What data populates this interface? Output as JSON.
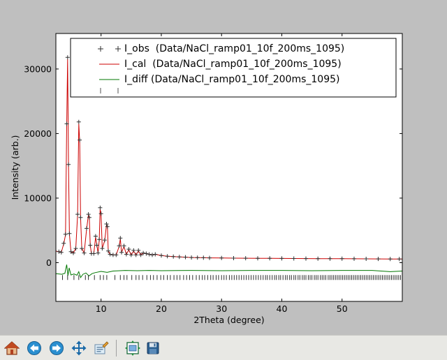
{
  "chart_data": {
    "type": "scatter",
    "xlabel": "2Theta (degree)",
    "ylabel": "Intensity (arb.)",
    "xlim": [
      2.5,
      60
    ],
    "ylim": [
      -6000,
      35500
    ],
    "xticks": [
      10,
      20,
      30,
      40,
      50
    ],
    "yticks": [
      0,
      10000,
      20000,
      30000
    ],
    "legend_position": "top",
    "series": [
      {
        "name": "I_obs  (Data/NaCl_ramp01_10f_200ms_1095)",
        "style": "plus-markers",
        "color": "#303030",
        "x": [
          3.0,
          3.4,
          3.8,
          4.1,
          4.3,
          4.45,
          4.6,
          4.75,
          5.0,
          5.4,
          5.8,
          6.1,
          6.3,
          6.45,
          6.6,
          6.8,
          7.2,
          7.6,
          7.9,
          8.05,
          8.2,
          8.4,
          8.8,
          9.1,
          9.3,
          9.5,
          9.7,
          9.85,
          10.0,
          10.2,
          10.6,
          10.9,
          11.05,
          11.2,
          11.5,
          12.0,
          12.5,
          13.0,
          13.2,
          13.4,
          13.8,
          14.2,
          14.6,
          15.0,
          15.4,
          15.8,
          16.2,
          16.6,
          17.0,
          17.5,
          18.0,
          18.5,
          19.0,
          20.0,
          21.0,
          22.0,
          23.0,
          24.0,
          25.0,
          26.0,
          27.0,
          28.0,
          30.0,
          32.0,
          34.0,
          36.0,
          38.0,
          40.0,
          42.0,
          44.0,
          46.0,
          48.0,
          50.0,
          52.0,
          54.0,
          56.0,
          58.0,
          59.5
        ],
        "y": [
          1700,
          1600,
          3000,
          4400,
          21500,
          31800,
          15200,
          4500,
          1700,
          1500,
          2200,
          7500,
          21800,
          19000,
          7000,
          2200,
          1500,
          5300,
          7500,
          7000,
          2700,
          1400,
          1400,
          4100,
          2700,
          1500,
          3600,
          8500,
          7600,
          2200,
          3500,
          6000,
          5600,
          1800,
          1300,
          1200,
          1200,
          2600,
          3800,
          1600,
          2600,
          1300,
          2100,
          1200,
          1900,
          1200,
          1900,
          1200,
          1500,
          1400,
          1300,
          1200,
          1300,
          1100,
          1000,
          950,
          900,
          850,
          800,
          780,
          760,
          740,
          720,
          700,
          690,
          680,
          670,
          660,
          650,
          640,
          630,
          620,
          610,
          600,
          590,
          580,
          570,
          560
        ]
      },
      {
        "name": "I_cal  (Data/NaCl_ramp01_10f_200ms_1095)",
        "style": "line",
        "color": "#cc0000",
        "x": [
          2.5,
          3.0,
          3.4,
          3.8,
          4.1,
          4.3,
          4.45,
          4.6,
          4.75,
          5.0,
          5.4,
          5.8,
          6.1,
          6.3,
          6.45,
          6.6,
          6.8,
          7.2,
          7.6,
          7.9,
          8.05,
          8.2,
          8.4,
          8.8,
          9.1,
          9.3,
          9.5,
          9.7,
          9.85,
          10.0,
          10.2,
          10.6,
          10.9,
          11.05,
          11.2,
          11.5,
          12.0,
          12.5,
          13.0,
          13.2,
          13.4,
          13.8,
          14.2,
          14.6,
          15.0,
          15.4,
          15.8,
          16.2,
          16.6,
          17.0,
          17.5,
          18.0,
          18.5,
          19.0,
          20.0,
          21.0,
          22.0,
          23.0,
          24.0,
          25.0,
          26.0,
          27.0,
          28.0,
          30.0,
          32.0,
          34.0,
          36.0,
          38.0,
          40.0,
          42.0,
          44.0,
          46.0,
          48.0,
          50.0,
          52.0,
          54.0,
          56.0,
          58.0,
          60.0
        ],
        "y": [
          1800,
          1700,
          1600,
          2900,
          4300,
          21300,
          31500,
          15000,
          4400,
          1700,
          1500,
          2200,
          7400,
          21500,
          18800,
          6900,
          2200,
          1500,
          5200,
          7400,
          6900,
          2700,
          1400,
          1400,
          4000,
          2700,
          1500,
          3500,
          8300,
          7500,
          2200,
          3400,
          5900,
          5500,
          1800,
          1300,
          1200,
          1200,
          2500,
          3700,
          1600,
          2500,
          1300,
          2000,
          1200,
          1800,
          1200,
          1800,
          1200,
          1500,
          1400,
          1300,
          1200,
          1300,
          1100,
          1000,
          950,
          900,
          850,
          800,
          780,
          760,
          740,
          720,
          700,
          690,
          680,
          670,
          660,
          650,
          640,
          630,
          620,
          610,
          600,
          590,
          580,
          570,
          560
        ]
      },
      {
        "name": "I_diff (Data/NaCl_ramp01_10f_200ms_1095)",
        "style": "line",
        "color": "#007700",
        "x": [
          2.5,
          3.5,
          4.0,
          4.3,
          4.5,
          4.7,
          5.0,
          5.5,
          6.0,
          6.3,
          6.6,
          7.0,
          7.5,
          8.0,
          8.5,
          9.0,
          10.0,
          11.0,
          12.0,
          14.0,
          16.0,
          18.0,
          20.0,
          25.0,
          30.0,
          35.0,
          40.0,
          45.0,
          50.0,
          55.0,
          58.0,
          60.0
        ],
        "y": [
          -1700,
          -1800,
          -1650,
          -300,
          -2000,
          -800,
          -1900,
          -1750,
          -1950,
          -1400,
          -2300,
          -1800,
          -1600,
          -2050,
          -1700,
          -1550,
          -1350,
          -1500,
          -1300,
          -1200,
          -1250,
          -1200,
          -1250,
          -1200,
          -1250,
          -1200,
          -1200,
          -1250,
          -1200,
          -1200,
          -1400,
          -1300
        ]
      },
      {
        "name": "",
        "style": "reflection-ticks",
        "color": "#303030",
        "y_level": -2300,
        "x": [
          3.6,
          4.45,
          5.5,
          6.3,
          7.4,
          7.9,
          8.9,
          9.85,
          10.4,
          10.95,
          12.3,
          13.2,
          13.8,
          14.3,
          15.1,
          15.8,
          16.3,
          16.9,
          17.6,
          18.2,
          18.7,
          19.3,
          19.9,
          20.4,
          21.0,
          21.5,
          22.1,
          22.6,
          23.1,
          23.7,
          24.2,
          24.7,
          25.2,
          25.8,
          26.3,
          26.8,
          27.2,
          27.7,
          28.2,
          28.6,
          29.1,
          29.5,
          30.0,
          30.4,
          30.8,
          31.3,
          31.7,
          32.1,
          32.5,
          32.9,
          33.3,
          33.7,
          34.1,
          34.5,
          34.9,
          35.3,
          35.7,
          36.1,
          36.5,
          36.9,
          37.3,
          37.6,
          38.0,
          38.4,
          38.8,
          39.1,
          39.5,
          39.8,
          40.2,
          40.6,
          40.9,
          41.3,
          41.6,
          42.0,
          42.3,
          42.7,
          43.0,
          43.4,
          43.7,
          44.0,
          44.4,
          44.7,
          45.0,
          45.4,
          45.7,
          46.0,
          46.4,
          46.7,
          47.0,
          47.3,
          47.7,
          48.0,
          48.3,
          48.6,
          48.9,
          49.2,
          49.5,
          49.8,
          50.1,
          50.4,
          50.7,
          51.0,
          51.3,
          51.6,
          51.9,
          52.2,
          52.5,
          52.8,
          53.1,
          53.4,
          53.7,
          54.0,
          54.3,
          54.6,
          54.9,
          55.2,
          55.5,
          55.8,
          56.1,
          56.4,
          56.7,
          57.0,
          57.3,
          57.6,
          57.9,
          58.2,
          58.5,
          58.8,
          59.1,
          59.4,
          59.7
        ]
      }
    ]
  },
  "toolbar": {
    "buttons": [
      {
        "icon": "home-icon"
      },
      {
        "icon": "back-arrow-icon"
      },
      {
        "icon": "forward-arrow-icon"
      },
      {
        "icon": "pan-arrows-icon"
      },
      {
        "icon": "zoom-rect-icon"
      },
      {
        "icon": "subplots-config-icon"
      },
      {
        "icon": "save-disk-icon"
      }
    ]
  }
}
